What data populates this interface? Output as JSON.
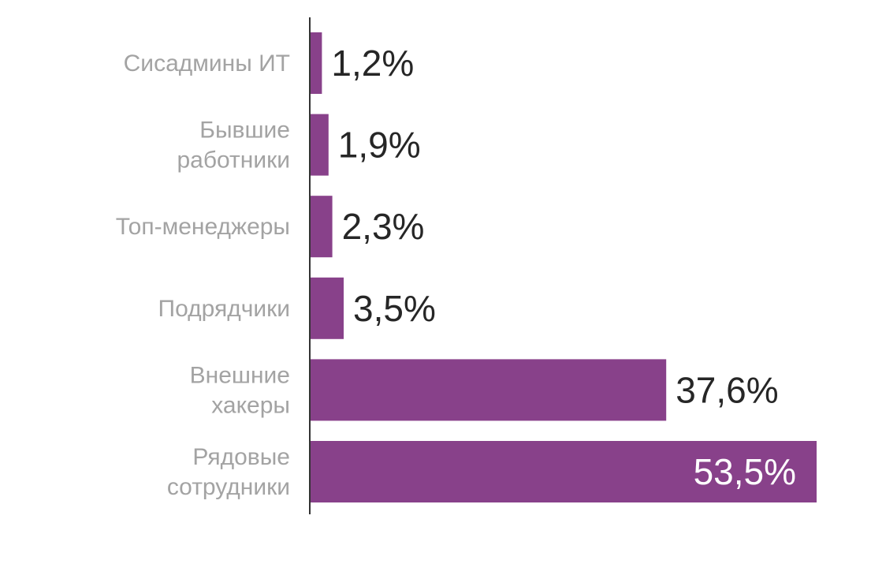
{
  "chart_data": {
    "type": "bar",
    "orientation": "horizontal",
    "categories": [
      "Сисадмины ИТ",
      "Бывшие работники",
      "Топ-менеджеры",
      "Подрядчики",
      "Внешние хакеры",
      "Рядовые сотрудники"
    ],
    "category_lines": [
      [
        "Сисадмины ИТ"
      ],
      [
        "Бывшие",
        "работники"
      ],
      [
        "Топ-менеджеры"
      ],
      [
        "Подрядчики"
      ],
      [
        "Внешние",
        "хакеры"
      ],
      [
        "Рядовые",
        "сотрудники"
      ]
    ],
    "values": [
      1.2,
      1.9,
      2.3,
      3.5,
      37.6,
      53.5
    ],
    "value_labels": [
      "1,2%",
      "1,9%",
      "2,3%",
      "3,5%",
      "37,6%",
      "53,5%"
    ],
    "title": "",
    "xlabel": "",
    "ylabel": "",
    "xlim": [
      0,
      53.5
    ],
    "grid": false,
    "legend": "none",
    "colors": {
      "bar": "#88418a",
      "axis": "#333333",
      "category_text": "#a3a3a3",
      "value_text_outside": "#262626",
      "value_text_inside": "#ffffff"
    }
  }
}
